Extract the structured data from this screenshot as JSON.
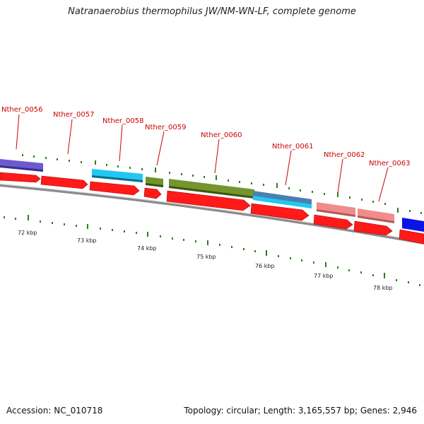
{
  "title": "Natranaerobius thermophilus JW/NM-WN-LF, complete genome",
  "footer": {
    "accession": "Accession: NC_010718",
    "stats": "Topology: circular; Length: 3,165,557 bp; Genes: 2,946"
  },
  "colors": {
    "cds": "#ff0000",
    "backbone": "#888888",
    "tick": "#2e7d1f",
    "label": "#cc0000"
  },
  "genes": [
    {
      "name": "Nther_0056",
      "color": "#6a5acd"
    },
    {
      "name": "Nther_0057",
      "color": "#ff0000"
    },
    {
      "name": "Nther_0058",
      "color": "#1ec8f0"
    },
    {
      "name": "Nther_0059",
      "color": "#6b8e23"
    },
    {
      "name": "Nther_0060",
      "color": "#6b8e23"
    },
    {
      "name": "Nther_0061",
      "color": "#4682b4"
    },
    {
      "name": "Nther_0062",
      "color": "#f08080"
    },
    {
      "name": "Nther_0063",
      "color": "#f08080"
    }
  ],
  "kbp_ticks": [
    "72 kbp",
    "73 kbp",
    "74 kbp",
    "75 kbp",
    "76 kbp",
    "77 kbp",
    "78 kbp"
  ]
}
